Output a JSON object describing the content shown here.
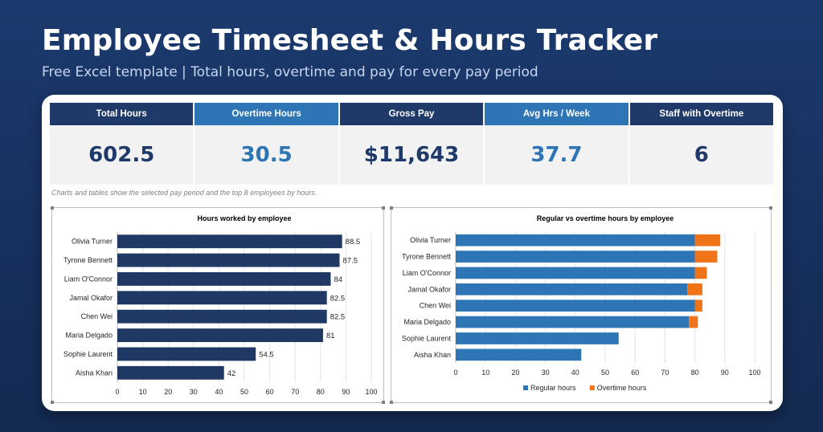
{
  "header": {
    "title": "Employee Timesheet & Hours Tracker",
    "subtitle": "Free Excel template  |  Total hours, overtime and pay for every pay period"
  },
  "kpis": [
    {
      "label": "Total Hours",
      "value": "602.5",
      "style": "dark"
    },
    {
      "label": "Overtime Hours",
      "value": "30.5",
      "style": "light"
    },
    {
      "label": "Gross Pay",
      "value": "$11,643",
      "style": "dark"
    },
    {
      "label": "Avg Hrs / Week",
      "value": "37.7",
      "style": "light"
    },
    {
      "label": "Staff with Overtime",
      "value": "6",
      "style": "dark"
    }
  ],
  "note": "Charts and tables show the selected pay period and the top 8 employees by hours.",
  "colors": {
    "navy": "#1f3a68",
    "blue": "#2e75b6",
    "orange": "#f07318",
    "bar_navy": "#203864"
  },
  "chart_data": [
    {
      "type": "bar",
      "orientation": "horizontal",
      "title": "Hours worked by employee",
      "categories": [
        "Olivia Turner",
        "Tyrone Bennett",
        "Liam O'Connor",
        "Jamal Okafor",
        "Chen Wei",
        "Maria Delgado",
        "Sophie Laurent",
        "Aisha Khan"
      ],
      "values": [
        88.5,
        87.5,
        84,
        82.5,
        82.5,
        81,
        54.5,
        42
      ],
      "data_labels": [
        "88.5",
        "87.5",
        "84",
        "82.5",
        "82.5",
        "81",
        "54.5",
        "42"
      ],
      "xlim": [
        0,
        100
      ],
      "xticks": [
        "0",
        "10",
        "20",
        "30",
        "40",
        "50",
        "60",
        "70",
        "80",
        "90",
        "100"
      ],
      "grid": true,
      "color": "#203864"
    },
    {
      "type": "bar",
      "orientation": "horizontal",
      "stacked": true,
      "title": "Regular vs overtime hours by employee",
      "categories": [
        "Olivia Turner",
        "Tyrone Bennett",
        "Liam O'Connor",
        "Jamal Okafor",
        "Chen Wei",
        "Maria Delgado",
        "Sophie Laurent",
        "Aisha Khan"
      ],
      "series": [
        {
          "name": "Regular hours",
          "values": [
            80,
            80,
            80,
            77.5,
            80,
            78,
            54.5,
            42
          ],
          "color": "#2e75b6"
        },
        {
          "name": "Overtime hours",
          "values": [
            8.5,
            7.5,
            4,
            5,
            2.5,
            3,
            0,
            0
          ],
          "color": "#f07318"
        }
      ],
      "xlim": [
        0,
        100
      ],
      "xticks": [
        "0",
        "10",
        "20",
        "30",
        "40",
        "50",
        "60",
        "70",
        "80",
        "90",
        "100"
      ],
      "grid": true,
      "legend": "bottom"
    }
  ]
}
